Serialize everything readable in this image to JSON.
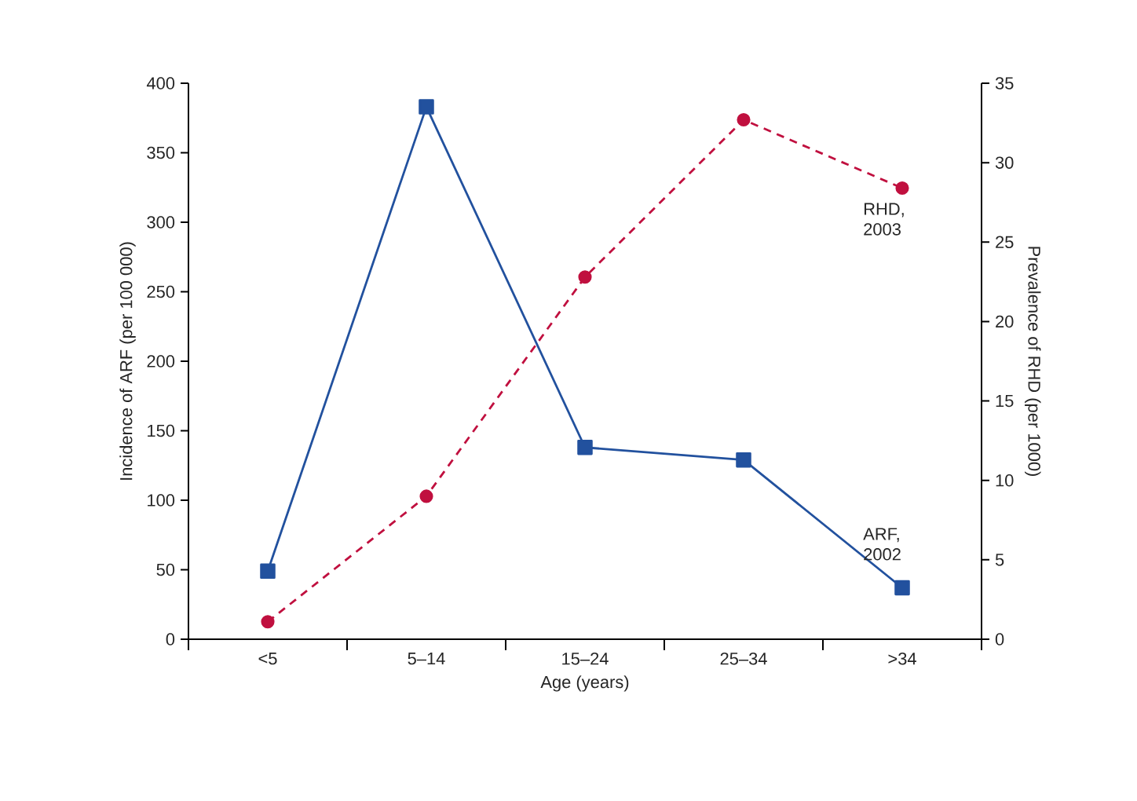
{
  "chart_data": {
    "type": "line",
    "xlabel": "Age (years)",
    "ylabel": "Incidence of ARF (per 100 000)",
    "y2label": "Prevalence of RHD (per 1000)",
    "categories": [
      "<5",
      "5–14",
      "15–24",
      "25–34",
      ">34"
    ],
    "series": [
      {
        "name": "ARF, 2002",
        "color": "#22519e",
        "values": [
          49,
          383,
          138,
          129,
          37
        ],
        "marker": "square",
        "line_style": "solid"
      },
      {
        "name": "RHD, 2003",
        "color": "#c0103f",
        "values": [
          1.1,
          9.0,
          22.8,
          32.7,
          28.4
        ],
        "axis": "y2",
        "marker": "circle",
        "line_style": "dashed"
      }
    ],
    "ylim": [
      0,
      400
    ],
    "yticks": [
      0,
      50,
      100,
      150,
      200,
      250,
      300,
      350,
      400
    ],
    "y2lim": [
      0,
      35
    ],
    "y2ticks": [
      0,
      5,
      10,
      15,
      20,
      25,
      30,
      35
    ],
    "grid": false
  }
}
